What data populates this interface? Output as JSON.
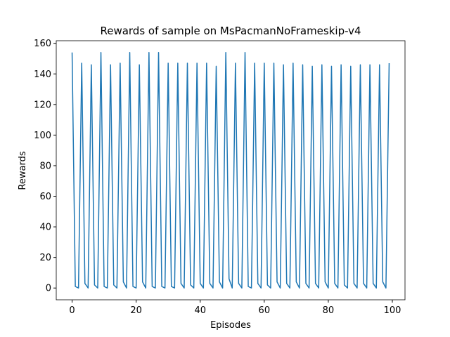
{
  "chart_data": {
    "type": "line",
    "title": "Rewards of sample on MsPacmanNoFrameskip-v4",
    "xlabel": "Episodes",
    "ylabel": "Rewards",
    "x": [
      0,
      1,
      2,
      3,
      4,
      5,
      6,
      7,
      8,
      9,
      10,
      11,
      12,
      13,
      14,
      15,
      16,
      17,
      18,
      19,
      20,
      21,
      22,
      23,
      24,
      25,
      26,
      27,
      28,
      29,
      30,
      31,
      32,
      33,
      34,
      35,
      36,
      37,
      38,
      39,
      40,
      41,
      42,
      43,
      44,
      45,
      46,
      47,
      48,
      49,
      50,
      51,
      52,
      53,
      54,
      55,
      56,
      57,
      58,
      59,
      60,
      61,
      62,
      63,
      64,
      65,
      66,
      67,
      68,
      69,
      70,
      71,
      72,
      73,
      74,
      75,
      76,
      77,
      78,
      79,
      80,
      81,
      82,
      83,
      84,
      85,
      86,
      87,
      88,
      89,
      90,
      91,
      92,
      93,
      94,
      95,
      96,
      97,
      98,
      99
    ],
    "series": [
      {
        "name": "Rewards",
        "color": "#1f77b4",
        "values": [
          154,
          1,
          0,
          147,
          3,
          0,
          146,
          2,
          0,
          154,
          1,
          0,
          146,
          2,
          0,
          147,
          4,
          0,
          154,
          1,
          0,
          146,
          4,
          0,
          154,
          1,
          0,
          154,
          1,
          0,
          147,
          1,
          0,
          147,
          3,
          0,
          147,
          2,
          0,
          147,
          3,
          0,
          147,
          3,
          0,
          145,
          4,
          0,
          154,
          6,
          0,
          147,
          3,
          0,
          154,
          1,
          0,
          147,
          3,
          0,
          147,
          2,
          0,
          147,
          4,
          0,
          146,
          3,
          0,
          147,
          4,
          0,
          146,
          3,
          0,
          145,
          3,
          0,
          146,
          4,
          0,
          145,
          3,
          0,
          146,
          2,
          0,
          145,
          3,
          0,
          146,
          3,
          0,
          146,
          3,
          0,
          146,
          4,
          0,
          147
        ]
      }
    ],
    "xlim": [
      -4.95,
      103.95
    ],
    "xticks": [
      0,
      20,
      40,
      60,
      80,
      100
    ],
    "ylim": [
      -7.7,
      161.7
    ],
    "yticks": [
      0,
      20,
      40,
      60,
      80,
      100,
      120,
      140,
      160
    ]
  }
}
